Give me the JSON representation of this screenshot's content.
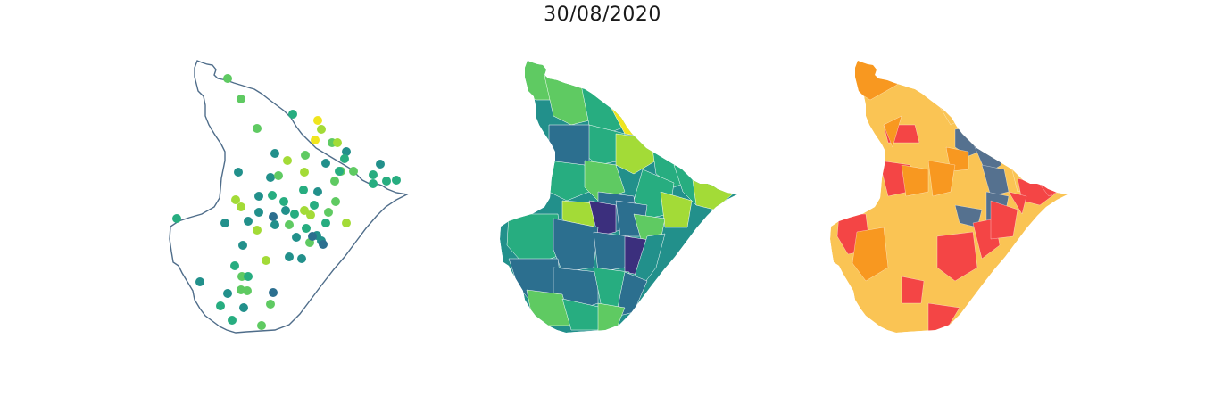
{
  "title": "30/08/2020",
  "colors": {
    "outline": "#4f6d8a",
    "viridis": [
      "#3b2f7d",
      "#2c6f8f",
      "#22908b",
      "#27ad80",
      "#5fca62",
      "#a3db37",
      "#f0e51e"
    ],
    "classes": [
      "#fac454",
      "#f89820",
      "#f44545",
      "#55718f"
    ]
  },
  "panels": [
    {
      "name": "point-map",
      "kind": "points"
    },
    {
      "name": "choropleth-map",
      "kind": "viridis"
    },
    {
      "name": "classified-map",
      "kind": "classes"
    }
  ]
}
